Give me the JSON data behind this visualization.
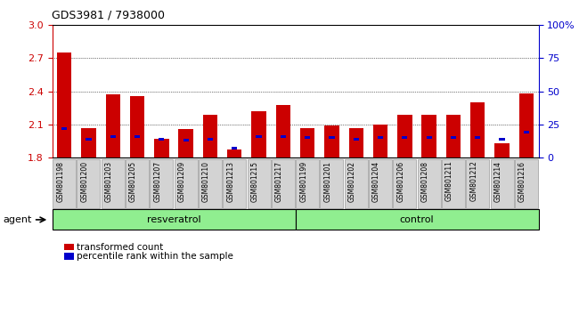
{
  "title": "GDS3981 / 7938000",
  "categories": [
    "GSM801198",
    "GSM801200",
    "GSM801203",
    "GSM801205",
    "GSM801207",
    "GSM801209",
    "GSM801210",
    "GSM801213",
    "GSM801215",
    "GSM801217",
    "GSM801199",
    "GSM801201",
    "GSM801202",
    "GSM801204",
    "GSM801206",
    "GSM801208",
    "GSM801211",
    "GSM801212",
    "GSM801214",
    "GSM801216"
  ],
  "red_values": [
    2.75,
    2.07,
    2.37,
    2.36,
    1.97,
    2.06,
    2.19,
    1.87,
    2.22,
    2.28,
    2.07,
    2.09,
    2.07,
    2.1,
    2.19,
    2.19,
    2.19,
    2.3,
    1.93,
    2.38
  ],
  "blue_pct": [
    22,
    14,
    16,
    16,
    14,
    13,
    14,
    7,
    16,
    16,
    15,
    15,
    14,
    15,
    15,
    15,
    15,
    15,
    14,
    19
  ],
  "ylim_left": [
    1.8,
    3.0
  ],
  "ylim_right": [
    0,
    100
  ],
  "yticks_left": [
    1.8,
    2.1,
    2.4,
    2.7,
    3.0
  ],
  "yticks_right": [
    0,
    25,
    50,
    75,
    100
  ],
  "ytick_labels_right": [
    "0",
    "25",
    "50",
    "75",
    "100%"
  ],
  "bar_color_red": "#cc0000",
  "bar_color_blue": "#0000cc",
  "bar_width": 0.6,
  "background_color": "#ffffff",
  "grid_dotted_at": [
    2.1,
    2.4,
    2.7
  ],
  "resveratrol_label": "resveratrol",
  "control_label": "control",
  "agent_label": "agent",
  "legend_red": "transformed count",
  "legend_blue": "percentile rank within the sample",
  "xticklabel_bg": "#d3d3d3",
  "group_bar_bg": "#90ee90",
  "n_resveratrol": 10,
  "n_control": 10
}
